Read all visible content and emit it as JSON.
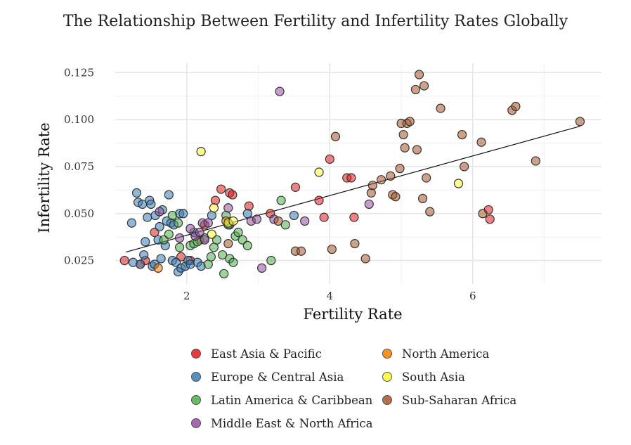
{
  "chart_data": {
    "type": "scatter",
    "title": "The Relationship Between Fertility and Infertility Rates Globally",
    "xlabel": "Fertility Rate",
    "ylabel": "Infertility Rate",
    "xlim": [
      1.0,
      7.8
    ],
    "ylim": [
      0.0125,
      0.13
    ],
    "x_ticks": [
      2,
      4,
      6
    ],
    "x_tick_labels": [
      "2",
      "4",
      "6"
    ],
    "y_ticks": [
      0.025,
      0.05,
      0.075,
      0.1,
      0.125
    ],
    "y_tick_labels": [
      "0.025",
      "0.050",
      "0.075",
      "0.100",
      "0.125"
    ],
    "grid": true,
    "legend_position": "bottom",
    "trendline": {
      "x": [
        1.15,
        7.5
      ],
      "y": [
        0.0295,
        0.0965
      ]
    },
    "series": [
      {
        "name": "East Asia & Pacific",
        "color": "#e41a1c",
        "x": [
          1.13,
          1.35,
          1.42,
          1.55,
          1.92,
          2.05,
          2.18,
          2.25,
          2.4,
          2.48,
          2.6,
          2.64,
          2.87,
          3.17,
          3.52,
          3.85,
          3.92,
          4.0,
          4.24,
          4.3,
          4.34,
          6.22,
          6.24
        ],
        "y": [
          0.025,
          0.023,
          0.025,
          0.04,
          0.027,
          0.025,
          0.036,
          0.044,
          0.057,
          0.063,
          0.061,
          0.06,
          0.054,
          0.05,
          0.064,
          0.057,
          0.048,
          0.079,
          0.069,
          0.069,
          0.048,
          0.052,
          0.047
        ]
      },
      {
        "name": "Europe & Central Asia",
        "color": "#377eb8",
        "x": [
          1.23,
          1.25,
          1.3,
          1.32,
          1.35,
          1.38,
          1.4,
          1.42,
          1.45,
          1.48,
          1.5,
          1.52,
          1.55,
          1.56,
          1.6,
          1.62,
          1.64,
          1.66,
          1.7,
          1.72,
          1.75,
          1.78,
          1.8,
          1.82,
          1.85,
          1.88,
          1.9,
          1.92,
          1.95,
          1.98,
          2.02,
          2.05,
          2.1,
          2.15,
          2.2,
          2.35,
          2.6,
          2.85,
          3.5
        ],
        "y": [
          0.045,
          0.024,
          0.061,
          0.056,
          0.023,
          0.055,
          0.028,
          0.035,
          0.048,
          0.057,
          0.055,
          0.022,
          0.023,
          0.049,
          0.036,
          0.043,
          0.026,
          0.052,
          0.033,
          0.046,
          0.06,
          0.045,
          0.025,
          0.044,
          0.024,
          0.019,
          0.05,
          0.021,
          0.05,
          0.022,
          0.025,
          0.023,
          0.04,
          0.024,
          0.022,
          0.049,
          0.044,
          0.05,
          0.049
        ]
      },
      {
        "name": "Latin America & Caribbean",
        "color": "#4daf4a",
        "x": [
          1.68,
          1.75,
          1.8,
          1.88,
          1.9,
          2.05,
          2.1,
          2.15,
          2.25,
          2.3,
          2.34,
          2.38,
          2.42,
          2.5,
          2.52,
          2.55,
          2.58,
          2.6,
          2.65,
          2.68,
          2.72,
          2.78,
          2.85,
          3.18,
          3.32,
          3.38
        ],
        "y": [
          0.036,
          0.039,
          0.049,
          0.045,
          0.032,
          0.033,
          0.034,
          0.035,
          0.037,
          0.023,
          0.027,
          0.032,
          0.036,
          0.028,
          0.018,
          0.049,
          0.044,
          0.026,
          0.024,
          0.038,
          0.04,
          0.036,
          0.033,
          0.025,
          0.057,
          0.044
        ]
      },
      {
        "name": "Middle East & North Africa",
        "color": "#984ea3",
        "x": [
          1.62,
          1.9,
          2.05,
          2.12,
          2.18,
          2.22,
          2.25,
          2.3,
          2.58,
          2.9,
          2.98,
          3.05,
          3.22,
          3.3,
          3.65,
          4.55
        ],
        "y": [
          0.051,
          0.037,
          0.042,
          0.038,
          0.04,
          0.045,
          0.036,
          0.045,
          0.053,
          0.046,
          0.047,
          0.021,
          0.047,
          0.115,
          0.046,
          0.055
        ]
      },
      {
        "name": "North America",
        "color": "#ff7f00",
        "x": [
          1.6,
          2.55
        ],
        "y": [
          0.021,
          0.046
        ]
      },
      {
        "name": "South Asia",
        "color": "#ffff33",
        "x": [
          2.2,
          2.35,
          2.38,
          2.58,
          2.65,
          3.85,
          5.8
        ],
        "y": [
          0.083,
          0.039,
          0.053,
          0.045,
          0.046,
          0.072,
          0.066
        ]
      },
      {
        "name": "Sub-Saharan Africa",
        "color": "#a65628",
        "x": [
          2.58,
          3.28,
          3.52,
          3.6,
          4.03,
          4.08,
          4.35,
          4.5,
          4.58,
          4.6,
          4.72,
          4.85,
          4.88,
          4.92,
          4.98,
          5.0,
          5.03,
          5.05,
          5.08,
          5.12,
          5.2,
          5.22,
          5.25,
          5.3,
          5.32,
          5.35,
          5.4,
          5.55,
          5.85,
          5.88,
          6.12,
          6.14,
          6.55,
          6.6,
          6.88,
          7.5
        ],
        "y": [
          0.034,
          0.046,
          0.03,
          0.03,
          0.031,
          0.091,
          0.034,
          0.026,
          0.061,
          0.065,
          0.068,
          0.07,
          0.06,
          0.059,
          0.074,
          0.098,
          0.092,
          0.085,
          0.098,
          0.099,
          0.116,
          0.084,
          0.124,
          0.058,
          0.118,
          0.069,
          0.051,
          0.106,
          0.092,
          0.075,
          0.088,
          0.05,
          0.105,
          0.107,
          0.078,
          0.099
        ]
      }
    ]
  }
}
